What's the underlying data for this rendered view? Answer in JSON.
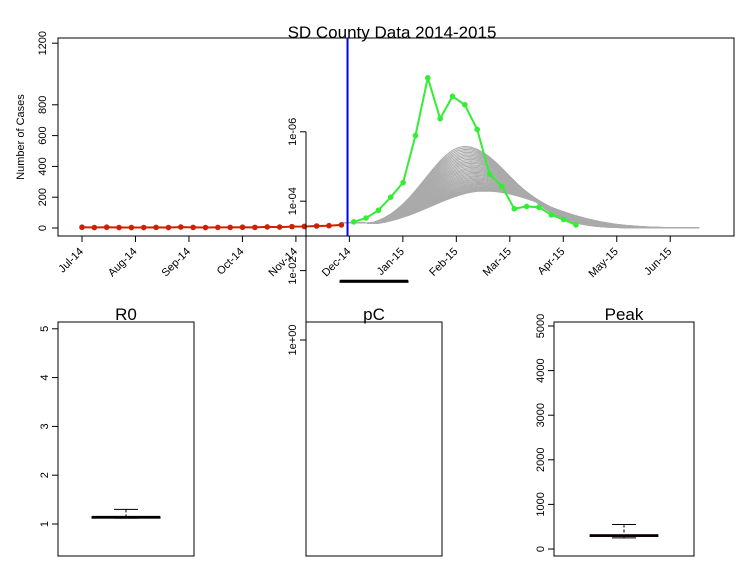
{
  "chart_data": [
    {
      "type": "line",
      "title": "SD County Data 2014-2015",
      "xlabel": "",
      "ylabel": "Number of Cases",
      "ylim": [
        0,
        1200
      ],
      "yticks": [
        0,
        200,
        400,
        600,
        800,
        1200
      ],
      "x_tick_labels": [
        "Jul-14",
        "Aug-14",
        "Sep-14",
        "Oct-14",
        "Nov-14",
        "Dec-14",
        "Jan-15",
        "Feb-15",
        "Mar-15",
        "Apr-15",
        "May-15",
        "Jun-15"
      ],
      "x_start_month": "Jul-14",
      "weeks_per_month": 4.33,
      "cutoff_week": 21.5,
      "cutoff_color": "#0000ff",
      "series": [
        {
          "role": "observed-fit",
          "color": "#cc2200",
          "start_week": 0,
          "values": [
            5,
            3,
            5,
            3,
            3,
            3,
            4,
            3,
            6,
            4,
            3,
            4,
            4,
            5,
            4,
            7,
            6,
            9,
            10,
            13,
            15,
            20
          ]
        },
        {
          "role": "observed-test",
          "color": "#33ee33",
          "start_week": 22,
          "values": [
            40,
            65,
            115,
            200,
            295,
            600,
            975,
            710,
            855,
            800,
            640,
            350,
            270,
            125,
            140,
            135,
            85,
            55,
            20
          ]
        }
      ],
      "ensemble": {
        "color": "#aaaaaa",
        "count": 40,
        "peak_week": 31,
        "peak_min": 240,
        "peak_max": 530,
        "start_value": 35,
        "end_week": 50
      }
    },
    {
      "type": "boxplot",
      "title": "R0",
      "ylim": [
        0.4,
        5.2
      ],
      "yticks": [
        1,
        2,
        3,
        4,
        5
      ],
      "box": {
        "min": 1.12,
        "q1": 1.13,
        "median": 1.14,
        "q3": 1.15,
        "max": 1.3
      },
      "color": "#000000"
    },
    {
      "type": "boxplot",
      "title": "pC",
      "log_scale": true,
      "ylim_log10": [
        -6,
        0.2
      ],
      "yticks": [
        "1e+00",
        "1e-02",
        "1e-04",
        "1e-06"
      ],
      "ytick_values_log10": [
        0,
        -2,
        -4,
        -6
      ],
      "box": {
        "min_log10": -1.71,
        "q1_log10": -1.705,
        "median_log10": -1.7,
        "q3_log10": -1.695,
        "max_log10": -1.69
      },
      "color": "#000000"
    },
    {
      "type": "boxplot",
      "title": "Peak",
      "ylim": [
        -100,
        5200
      ],
      "yticks": [
        0,
        1000,
        2000,
        3000,
        4000,
        5000
      ],
      "box": {
        "min": 250,
        "q1": 280,
        "median": 300,
        "q3": 320,
        "max": 550
      },
      "color": "#6a1a4c"
    }
  ]
}
